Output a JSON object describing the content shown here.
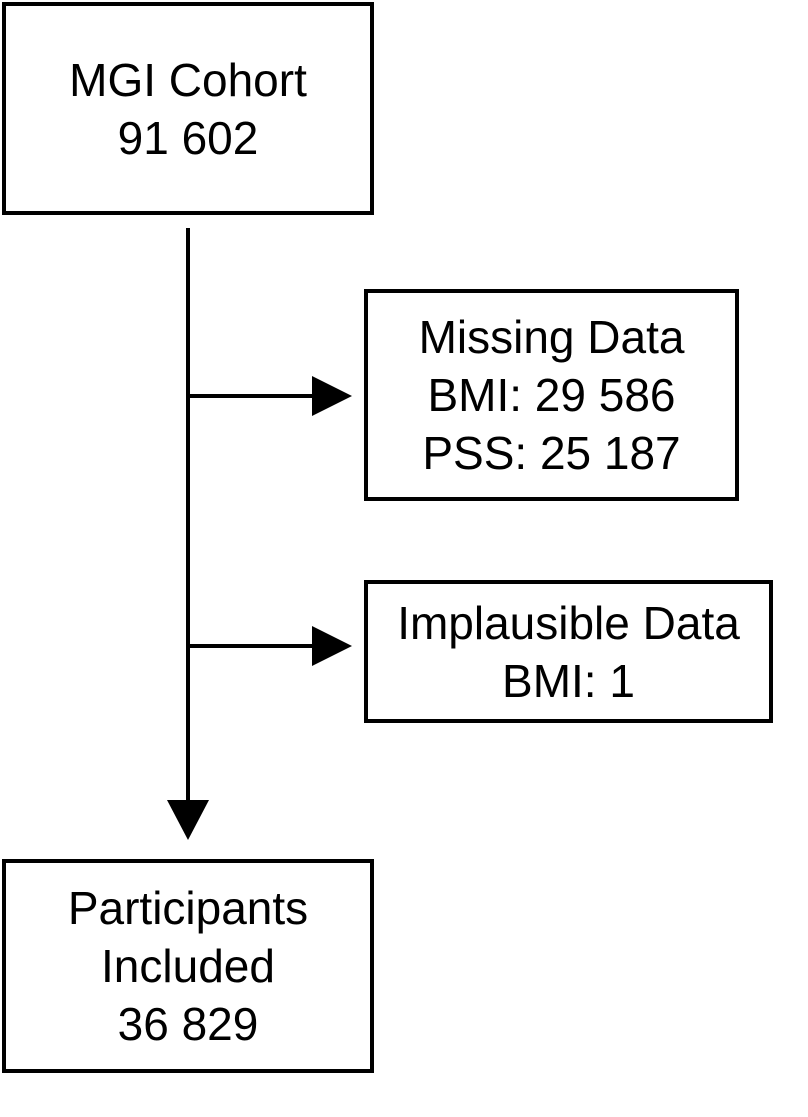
{
  "boxes": {
    "cohort": {
      "line1": "MGI Cohort",
      "line2": "91 602"
    },
    "missing": {
      "line1": "Missing Data",
      "line2": "BMI: 29 586",
      "line3": "PSS: 25 187"
    },
    "implausible": {
      "line1": "Implausible Data",
      "line2": "BMI: 1"
    },
    "included": {
      "line1": "Participants",
      "line2": "Included",
      "line3": "36 829"
    }
  },
  "colors": {
    "stroke": "#000000",
    "background": "#ffffff"
  }
}
